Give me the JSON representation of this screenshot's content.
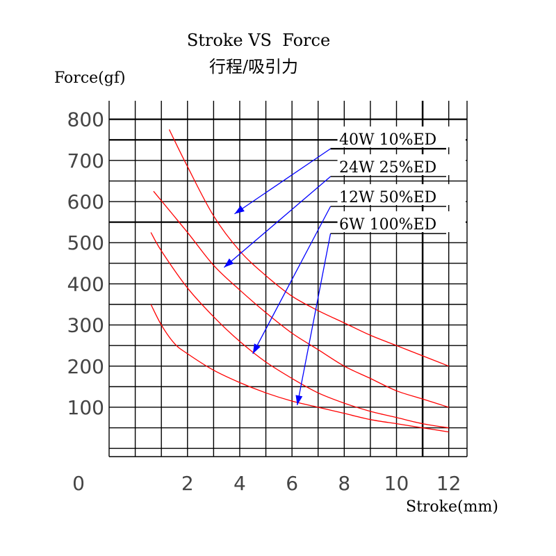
{
  "chart_data": {
    "type": "line",
    "title": "Stroke VS  Force",
    "subtitle": "行程/吸引力",
    "ylabel": "Force(gf)",
    "xlabel": "Stroke(mm)",
    "xlim": [
      -1,
      12.7
    ],
    "ylim": [
      -20,
      845
    ],
    "x_ticks": [
      0,
      2,
      4,
      6,
      8,
      10,
      12
    ],
    "y_ticks": [
      100,
      200,
      300,
      400,
      500,
      600,
      700,
      800
    ],
    "grid": true,
    "legend_position": "upper-right",
    "series": [
      {
        "name": "40W  10%ED",
        "x": [
          1.3,
          2,
          3,
          4,
          5,
          6,
          7,
          8,
          9,
          10,
          11,
          12
        ],
        "y": [
          775,
          685,
          565,
          480,
          420,
          370,
          335,
          305,
          275,
          250,
          225,
          200
        ]
      },
      {
        "name": "24W  25%ED",
        "x": [
          0.7,
          2,
          3,
          4,
          5,
          6,
          7,
          8,
          9,
          10,
          11,
          12
        ],
        "y": [
          625,
          525,
          445,
          385,
          330,
          280,
          240,
          200,
          170,
          140,
          120,
          100
        ]
      },
      {
        "name": "12W   50%ED",
        "x": [
          0.6,
          1,
          2,
          3,
          4,
          5,
          6,
          7,
          8,
          9,
          10,
          11,
          12
        ],
        "y": [
          525,
          480,
          390,
          320,
          260,
          210,
          170,
          135,
          110,
          90,
          75,
          60,
          50
        ]
      },
      {
        "name": "6W  100%ED",
        "x": [
          0.6,
          1,
          1.5,
          2,
          3,
          4,
          5,
          6,
          7,
          8,
          9,
          10,
          11,
          12
        ],
        "y": [
          350,
          300,
          255,
          230,
          190,
          160,
          135,
          115,
          100,
          85,
          70,
          60,
          50,
          40
        ]
      }
    ],
    "arrow_targets": [
      {
        "x": 3.8,
        "y": 570
      },
      {
        "x": 3.4,
        "y": 440
      },
      {
        "x": 4.5,
        "y": 230
      },
      {
        "x": 6.2,
        "y": 105
      }
    ]
  },
  "colors": {
    "curve": "#ff0000",
    "arrow": "#0000ff",
    "grid": "#000000",
    "text": "#000000"
  }
}
